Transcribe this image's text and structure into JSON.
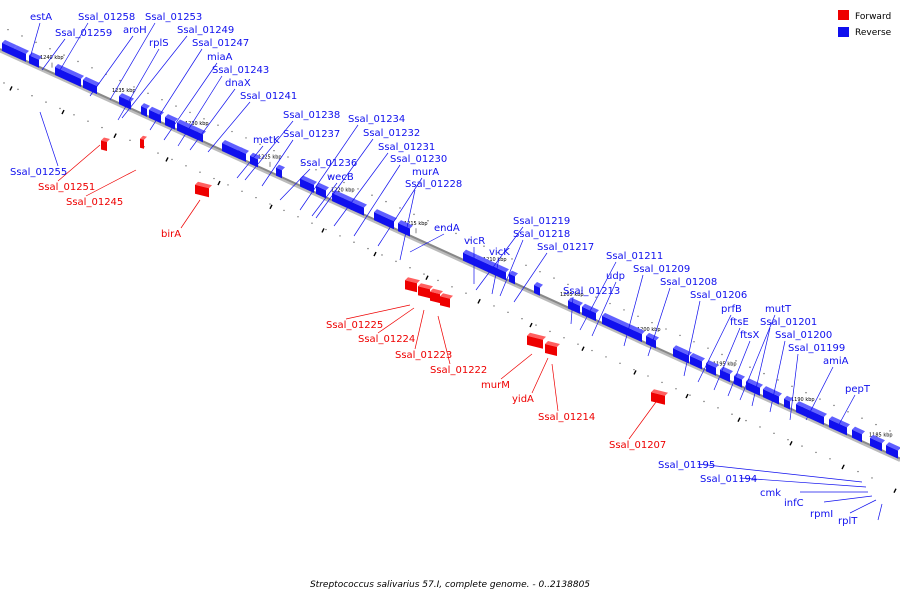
{
  "caption": "Streptococcus salivarius 57.I, complete genome. - 0..2138805",
  "legend": [
    {
      "label": "Forward",
      "color": "#ee0000"
    },
    {
      "label": "Reverse",
      "color": "#1010ee"
    }
  ],
  "colors": {
    "forward": "#ee0000",
    "reverse": "#1010ee",
    "backbone": "#888888"
  },
  "ticks": [
    "1240 kbp",
    "1235 kbp",
    "1230 kbp",
    "1225 kbp",
    "1220 kbp",
    "1215 kbp",
    "1210 kbp",
    "1205 kbp",
    "1200 kbp",
    "1195 kbp",
    "1190 kbp",
    "1185 kbp"
  ],
  "genes": [
    {
      "name": "estA",
      "strand": "reverse"
    },
    {
      "name": "Ssal_01258",
      "strand": "reverse"
    },
    {
      "name": "Ssal_01253",
      "strand": "reverse"
    },
    {
      "name": "Ssal_01259",
      "strand": "reverse"
    },
    {
      "name": "aroH",
      "strand": "reverse"
    },
    {
      "name": "Ssal_01249",
      "strand": "reverse"
    },
    {
      "name": "rplS",
      "strand": "reverse"
    },
    {
      "name": "Ssal_01247",
      "strand": "reverse"
    },
    {
      "name": "miaA",
      "strand": "reverse"
    },
    {
      "name": "Ssal_01243",
      "strand": "reverse"
    },
    {
      "name": "dnaX",
      "strand": "reverse"
    },
    {
      "name": "Ssal_01241",
      "strand": "reverse"
    },
    {
      "name": "Ssal_01238",
      "strand": "reverse"
    },
    {
      "name": "metK",
      "strand": "reverse"
    },
    {
      "name": "Ssal_01237",
      "strand": "reverse"
    },
    {
      "name": "Ssal_01234",
      "strand": "reverse"
    },
    {
      "name": "Ssal_01232",
      "strand": "reverse"
    },
    {
      "name": "Ssal_01236",
      "strand": "reverse"
    },
    {
      "name": "Ssal_01231",
      "strand": "reverse"
    },
    {
      "name": "wecB",
      "strand": "reverse"
    },
    {
      "name": "Ssal_01230",
      "strand": "reverse"
    },
    {
      "name": "murA",
      "strand": "reverse"
    },
    {
      "name": "Ssal_01228",
      "strand": "reverse"
    },
    {
      "name": "endA",
      "strand": "reverse"
    },
    {
      "name": "Ssal_01219",
      "strand": "reverse"
    },
    {
      "name": "Ssal_01218",
      "strand": "reverse"
    },
    {
      "name": "vicR",
      "strand": "reverse"
    },
    {
      "name": "vicK",
      "strand": "reverse"
    },
    {
      "name": "Ssal_01217",
      "strand": "reverse"
    },
    {
      "name": "Ssal_01211",
      "strand": "reverse"
    },
    {
      "name": "udp",
      "strand": "reverse"
    },
    {
      "name": "Ssal_01209",
      "strand": "reverse"
    },
    {
      "name": "Ssal_01213",
      "strand": "reverse"
    },
    {
      "name": "Ssal_01208",
      "strand": "reverse"
    },
    {
      "name": "Ssal_01206",
      "strand": "reverse"
    },
    {
      "name": "prfB",
      "strand": "reverse"
    },
    {
      "name": "ftsE",
      "strand": "reverse"
    },
    {
      "name": "ftsX",
      "strand": "reverse"
    },
    {
      "name": "mutT",
      "strand": "reverse"
    },
    {
      "name": "Ssal_01201",
      "strand": "reverse"
    },
    {
      "name": "Ssal_01200",
      "strand": "reverse"
    },
    {
      "name": "Ssal_01199",
      "strand": "reverse"
    },
    {
      "name": "amiA",
      "strand": "reverse"
    },
    {
      "name": "pepT",
      "strand": "reverse"
    },
    {
      "name": "Ssal_01255",
      "strand": "reverse"
    },
    {
      "name": "Ssal_01195",
      "strand": "reverse"
    },
    {
      "name": "Ssal_01194",
      "strand": "reverse"
    },
    {
      "name": "cmk",
      "strand": "reverse"
    },
    {
      "name": "infC",
      "strand": "reverse"
    },
    {
      "name": "rpmI",
      "strand": "reverse"
    },
    {
      "name": "rplT",
      "strand": "reverse"
    },
    {
      "name": "Ssal_01251",
      "strand": "forward"
    },
    {
      "name": "Ssal_01245",
      "strand": "forward"
    },
    {
      "name": "birA",
      "strand": "forward"
    },
    {
      "name": "Ssal_01225",
      "strand": "forward"
    },
    {
      "name": "Ssal_01224",
      "strand": "forward"
    },
    {
      "name": "Ssal_01223",
      "strand": "forward"
    },
    {
      "name": "Ssal_01222",
      "strand": "forward"
    },
    {
      "name": "murM",
      "strand": "forward"
    },
    {
      "name": "yidA",
      "strand": "forward"
    },
    {
      "name": "Ssal_01214",
      "strand": "forward"
    },
    {
      "name": "Ssal_01207",
      "strand": "forward"
    }
  ]
}
